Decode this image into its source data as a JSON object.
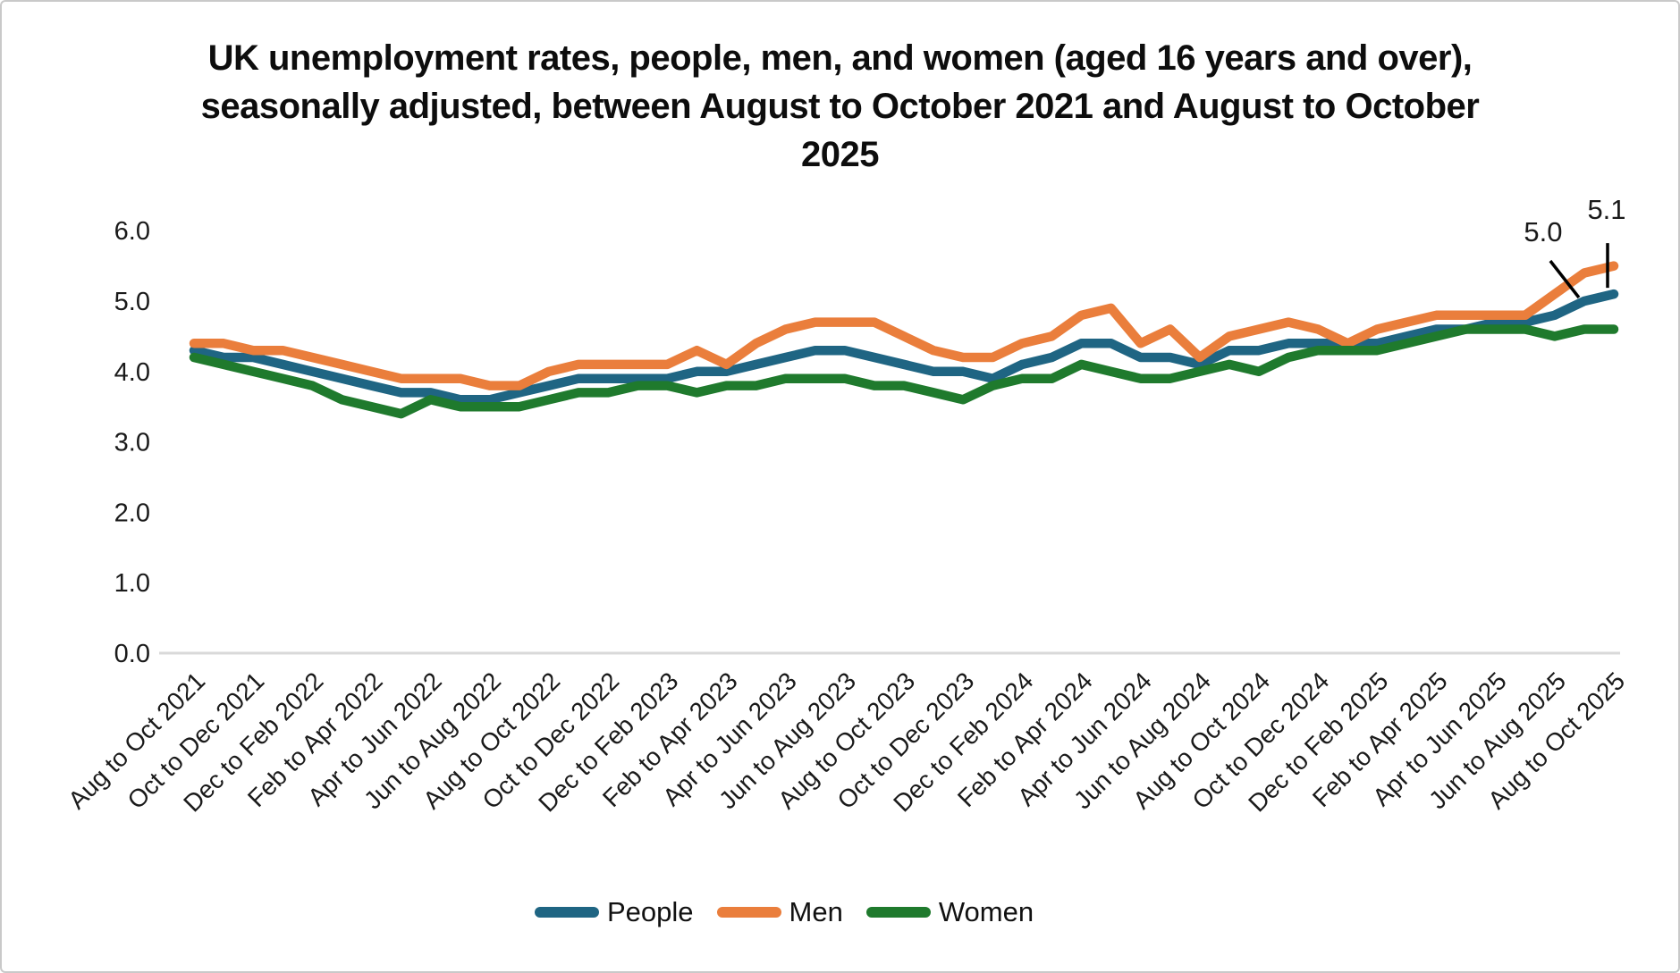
{
  "title": {
    "lines": [
      "UK unemployment rates, people, men, and women (aged 16 years and over),",
      "seasonally adjusted, between August to October 2021 and August to October",
      "2025"
    ]
  },
  "chart_data": {
    "type": "line",
    "title": "UK unemployment rates, people, men, and women (aged 16 years and over), seasonally adjusted, between August to October 2021 and August to October 2025",
    "xlabel": "",
    "ylabel": "",
    "ylim": [
      0.0,
      6.0
    ],
    "grid": "off",
    "legend_position": "bottom",
    "axis_color": "#d9d9d9",
    "y_ticks": [
      "6.0",
      "5.0",
      "4.0",
      "3.0",
      "2.0",
      "1.0",
      "0.0"
    ],
    "x_tick_labels": [
      "Aug to Oct 2021",
      "Oct to Dec 2021",
      "Dec to Feb 2022",
      "Feb to Apr 2022",
      "Apr to Jun 2022",
      "Jun to Aug 2022",
      "Aug to Oct 2022",
      "Oct to Dec 2022",
      "Dec to Feb 2023",
      "Feb to Apr 2023",
      "Apr to Jun 2023",
      "Jun to Aug 2023",
      "Aug to Oct 2023",
      "Oct to Dec 2023",
      "Dec to Feb 2024",
      "Feb to Apr 2024",
      "Apr to Jun 2024",
      "Jun to Aug 2024",
      "Aug to Oct 2024",
      "Oct to Dec 2024",
      "Dec to Feb 2025",
      "Feb to Apr 2025",
      "Apr to Jun 2025",
      "Jun to Aug 2025",
      "Aug to Oct 2025"
    ],
    "points_per_tick": 2,
    "n_points": 49,
    "series": [
      {
        "name": "People",
        "color": "#1F6583",
        "values": [
          4.3,
          4.2,
          4.2,
          4.1,
          4.0,
          3.9,
          3.8,
          3.7,
          3.7,
          3.6,
          3.6,
          3.7,
          3.8,
          3.9,
          3.9,
          3.9,
          3.9,
          4.0,
          4.0,
          4.1,
          4.2,
          4.3,
          4.3,
          4.2,
          4.1,
          4.0,
          4.0,
          3.9,
          4.1,
          4.2,
          4.4,
          4.4,
          4.2,
          4.2,
          4.1,
          4.3,
          4.3,
          4.4,
          4.4,
          4.4,
          4.4,
          4.5,
          4.6,
          4.6,
          4.7,
          4.7,
          4.8,
          5.0,
          5.1
        ]
      },
      {
        "name": "Men",
        "color": "#EA7E3C",
        "values": [
          4.4,
          4.4,
          4.3,
          4.3,
          4.2,
          4.1,
          4.0,
          3.9,
          3.9,
          3.9,
          3.8,
          3.8,
          4.0,
          4.1,
          4.1,
          4.1,
          4.1,
          4.3,
          4.1,
          4.4,
          4.6,
          4.7,
          4.7,
          4.7,
          4.5,
          4.3,
          4.2,
          4.2,
          4.4,
          4.5,
          4.8,
          4.9,
          4.4,
          4.6,
          4.2,
          4.5,
          4.6,
          4.7,
          4.6,
          4.4,
          4.6,
          4.7,
          4.8,
          4.8,
          4.8,
          4.8,
          5.1,
          5.4,
          5.5
        ]
      },
      {
        "name": "Women",
        "color": "#1F7A2D",
        "values": [
          4.2,
          4.1,
          4.0,
          3.9,
          3.8,
          3.6,
          3.5,
          3.4,
          3.6,
          3.5,
          3.5,
          3.5,
          3.6,
          3.7,
          3.7,
          3.8,
          3.8,
          3.7,
          3.8,
          3.8,
          3.9,
          3.9,
          3.9,
          3.8,
          3.8,
          3.7,
          3.6,
          3.8,
          3.9,
          3.9,
          4.1,
          4.0,
          3.9,
          3.9,
          4.0,
          4.1,
          4.0,
          4.2,
          4.3,
          4.3,
          4.3,
          4.4,
          4.5,
          4.6,
          4.6,
          4.6,
          4.5,
          4.6,
          4.6
        ]
      }
    ],
    "annotations": [
      {
        "text": "5.0",
        "series_index": 0,
        "point_index": 47
      },
      {
        "text": "5.1",
        "series_index": 0,
        "point_index": 48
      }
    ]
  }
}
